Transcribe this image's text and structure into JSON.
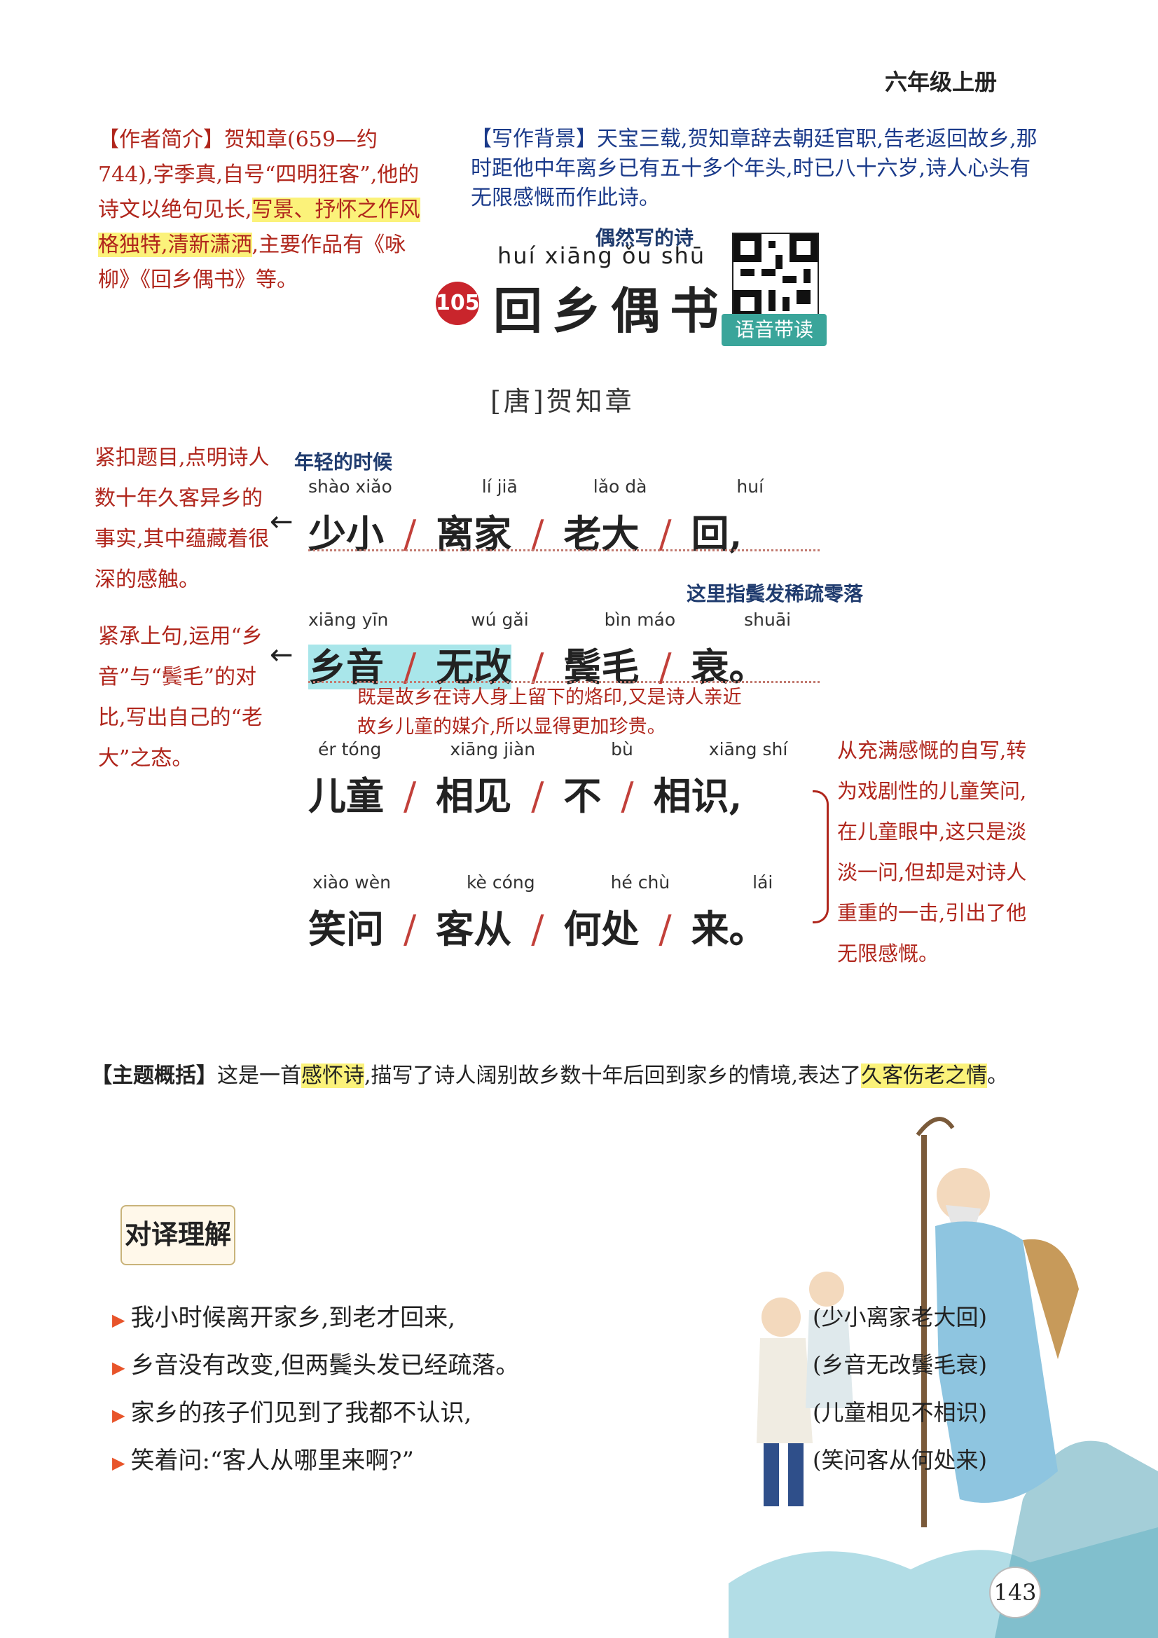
{
  "header": {
    "grade": "六年级上册"
  },
  "author_note": {
    "label": "【作者简介】",
    "text_a": "贺知章(659—约 744),字季真,自号“四明狂客”,他的诗文以绝句见长,",
    "highlight": "写景、抒怀之作风格独特,清新潇洒",
    "text_b": ",主要作品有《咏柳》《回乡偶书》等。"
  },
  "background_note": {
    "label": "【写作背景】",
    "text": "天宝三载,贺知章辞去朝廷官职,告老返回故乡,那时距他中年离乡已有五十多个年头,时已八十六岁,诗人心头有无限感慨而作此诗。"
  },
  "title_block": {
    "number": "105",
    "gloss": "偶然写的诗",
    "pinyin": "huí xiāng ǒu  shū",
    "title": "回乡偶书",
    "audio_label": "语音带读"
  },
  "author_line": "[唐]贺知章",
  "poem": [
    {
      "groups": [
        {
          "py": "shào  xiǎo",
          "hz": "少小"
        },
        {
          "py": "lí    jiā",
          "hz": "离家"
        },
        {
          "py": "lǎo   dà",
          "hz": "老大"
        },
        {
          "py": "huí",
          "hz": "回"
        }
      ],
      "end": ","
    },
    {
      "groups": [
        {
          "py": "xiāng  yīn",
          "hz": "乡音"
        },
        {
          "py": "wú    gǎi",
          "hz": "无改"
        },
        {
          "py": "bìn   máo",
          "hz": "鬓毛"
        },
        {
          "py": "shuāi",
          "hz": "衰"
        }
      ],
      "end": "。"
    },
    {
      "groups": [
        {
          "py": "ér   tóng",
          "hz": "儿童"
        },
        {
          "py": "xiāng  jiàn",
          "hz": "相见"
        },
        {
          "py": "bù",
          "hz": "不"
        },
        {
          "py": "xiāng  shí",
          "hz": "相识"
        }
      ],
      "end": ","
    },
    {
      "groups": [
        {
          "py": "xiào  wèn",
          "hz": "笑问"
        },
        {
          "py": "kè   cóng",
          "hz": "客从"
        },
        {
          "py": "hé   chù",
          "hz": "何处"
        },
        {
          "py": "lái",
          "hz": "来"
        }
      ],
      "end": "。"
    }
  ],
  "annotations": {
    "young": "年轻的时候",
    "sparse": "这里指鬓发稀疏零落",
    "left1": "紧扣题目,点明诗人数十年久客异乡的事实,其中蕴藏着很深的感触。",
    "left2": "紧承上句,运用“乡音”与“鬓毛”的对比,写出自己的“老大”之态。",
    "mid": "既是故乡在诗人身上留下的烙印,又是诗人亲近故乡儿童的媒介,所以显得更加珍贵。",
    "right": "从充满感慨的自写,转为戏剧性的儿童笑问,在儿童眼中,这只是淡淡一问,但却是对诗人重重的一击,引出了他无限感慨。"
  },
  "theme": {
    "label": "【主题概括】",
    "text_a": "这是一首",
    "hl1": "感怀诗",
    "text_b": ",描写了诗人阔别故乡数十年后回到家乡的情境,表达了",
    "hl2": "久客伤老之情",
    "text_c": "。"
  },
  "translation": {
    "badge": "对译理解",
    "items": [
      {
        "text": "我小时候离开家乡,到老才回来,",
        "src": "(少小离家老大回)"
      },
      {
        "text": "乡音没有改变,但两鬓头发已经疏落。",
        "src": "(乡音无改鬓毛衰)"
      },
      {
        "text": "家乡的孩子们见到了我都不认识,",
        "src": "(儿童相见不相识)"
      },
      {
        "text": "笑着问:“客人从哪里来啊?”",
        "src": "(笑问客从何处来)"
      }
    ]
  },
  "page_number": "143"
}
